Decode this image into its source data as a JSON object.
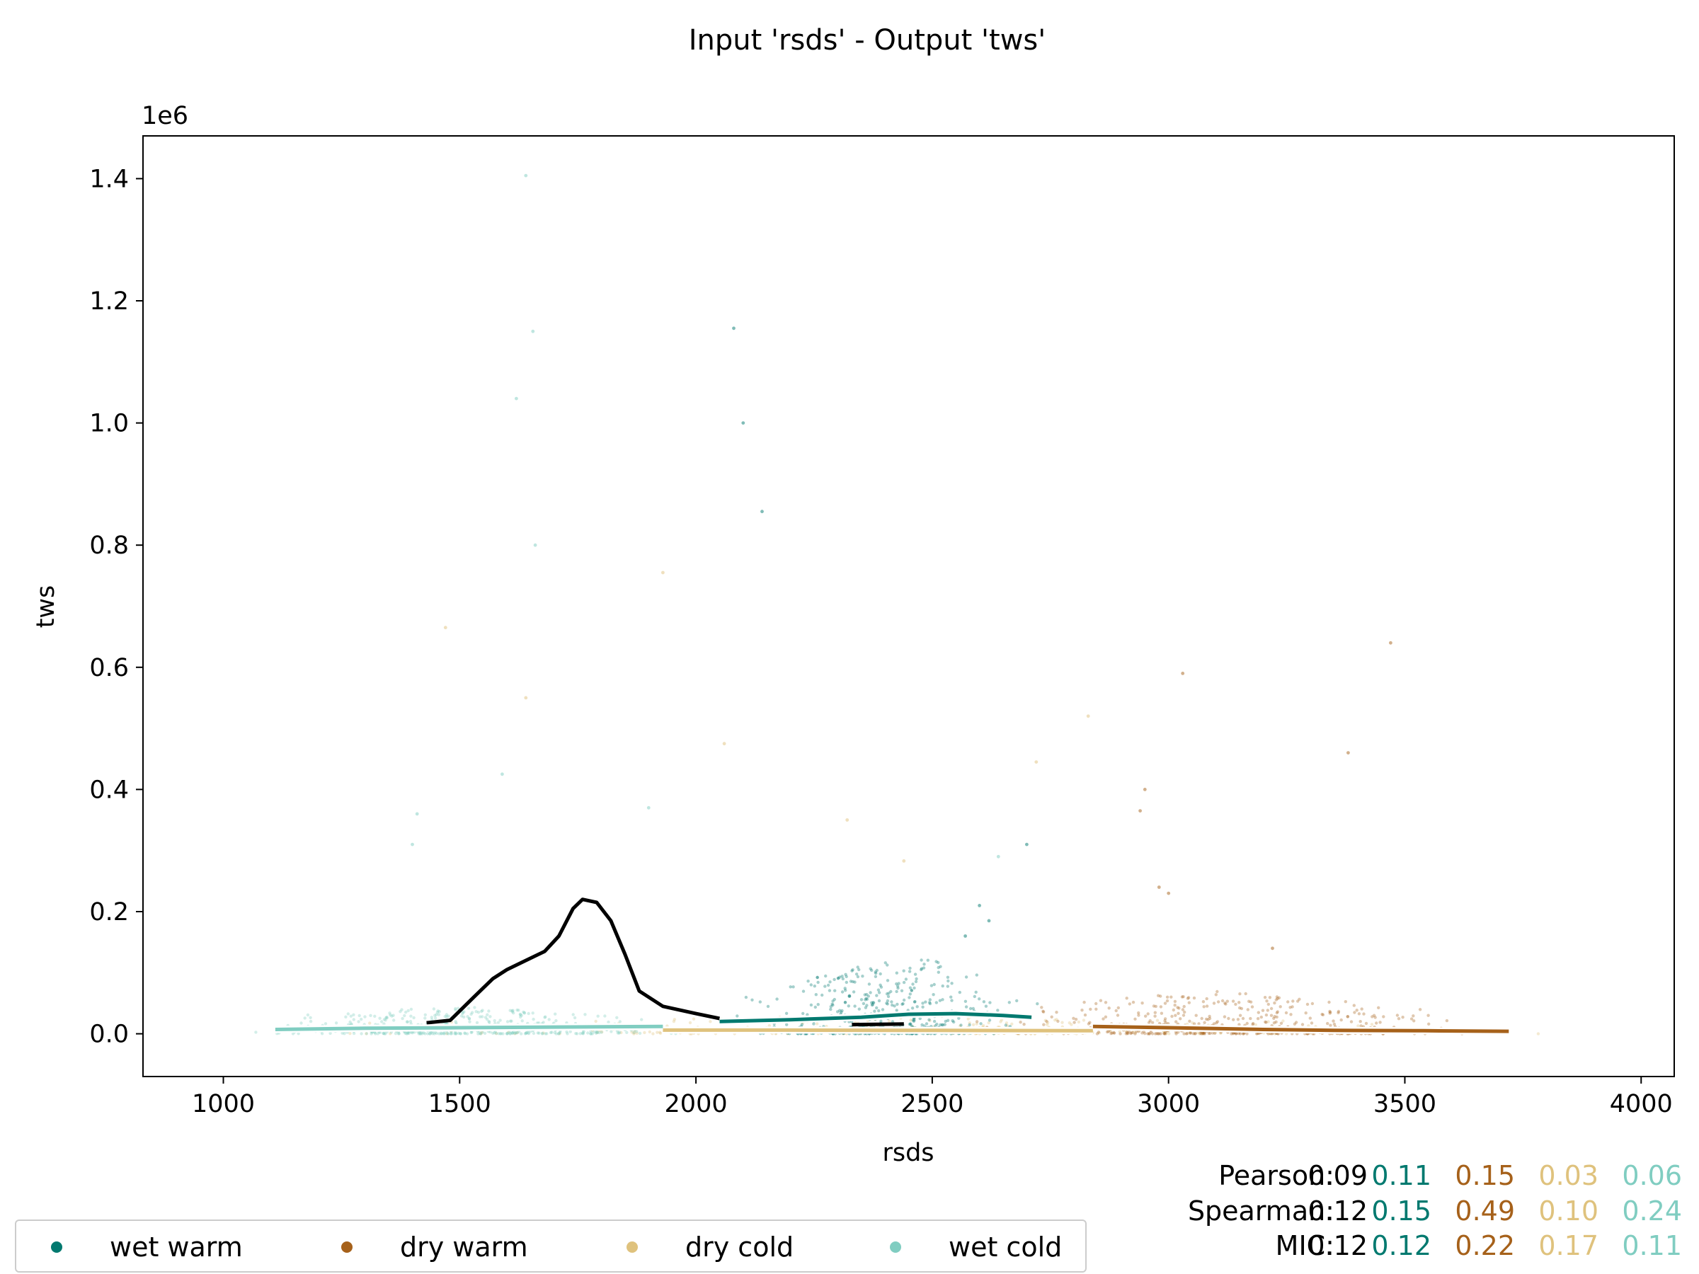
{
  "chart_data": {
    "type": "scatter",
    "title": "Input 'rsds' - Output 'tws'",
    "xlabel": "rsds",
    "ylabel": "tws",
    "y_offset_label": "1e6",
    "xlim": [
      830,
      4070
    ],
    "ylim": [
      -70000,
      1470000
    ],
    "x_ticks": [
      1000,
      1500,
      2000,
      2500,
      3000,
      3500,
      4000
    ],
    "x_tick_labels": [
      "1000",
      "1500",
      "2000",
      "2500",
      "3000",
      "3500",
      "4000"
    ],
    "y_ticks": [
      0,
      200000,
      400000,
      600000,
      800000,
      1000000,
      1200000,
      1400000
    ],
    "y_tick_labels": [
      "0.0",
      "0.2",
      "0.4",
      "0.6",
      "0.8",
      "1.0",
      "1.2",
      "1.4"
    ],
    "grid": false,
    "legend_position": "bottom-left",
    "series": [
      {
        "name": "wet warm",
        "color": "#01796f",
        "cluster": {
          "x_range": [
            2050,
            2750
          ],
          "y_max": 130000,
          "center": 2450,
          "density": 0.55
        },
        "outliers": [
          [
            2080,
            1155000
          ],
          [
            2100,
            1000000
          ],
          [
            2140,
            855000
          ],
          [
            2620,
            185000
          ],
          [
            2570,
            160000
          ],
          [
            2600,
            210000
          ],
          [
            2700,
            310000
          ]
        ],
        "trend": [
          [
            2050,
            20000
          ],
          [
            2200,
            23000
          ],
          [
            2350,
            27000
          ],
          [
            2450,
            32000
          ],
          [
            2550,
            33000
          ],
          [
            2650,
            30000
          ],
          [
            2710,
            27000
          ]
        ]
      },
      {
        "name": "dry warm",
        "color": "#a6611a",
        "cluster": {
          "x_range": [
            2500,
            3720
          ],
          "y_max": 70000,
          "center": 3100,
          "density": 0.5
        },
        "outliers": [
          [
            3030,
            590000
          ],
          [
            3470,
            640000
          ],
          [
            3380,
            460000
          ],
          [
            2950,
            400000
          ],
          [
            2940,
            365000
          ],
          [
            2980,
            240000
          ],
          [
            3000,
            230000
          ],
          [
            3220,
            140000
          ]
        ],
        "trend": [
          [
            2840,
            12000
          ],
          [
            3000,
            10000
          ],
          [
            3200,
            7000
          ],
          [
            3350,
            5500
          ],
          [
            3520,
            5000
          ],
          [
            3540,
            5000
          ],
          [
            3720,
            4000
          ]
        ]
      },
      {
        "name": "dry cold",
        "color": "#dfc27d",
        "cluster": {
          "x_range": [
            960,
            3900
          ],
          "y_max": 30000,
          "center": 2400,
          "density": 0.3
        },
        "outliers": [
          [
            1470,
            665000
          ],
          [
            1640,
            550000
          ],
          [
            2060,
            475000
          ],
          [
            1930,
            755000
          ],
          [
            2720,
            445000
          ],
          [
            2830,
            520000
          ],
          [
            2440,
            283000
          ],
          [
            2320,
            350000
          ]
        ],
        "trend": [
          [
            1930,
            6000
          ],
          [
            2200,
            6000
          ],
          [
            2500,
            5500
          ],
          [
            2840,
            5000
          ]
        ]
      },
      {
        "name": "wet cold",
        "color": "#80cdc1",
        "cluster": {
          "x_range": [
            970,
            2050
          ],
          "y_max": 45000,
          "center": 1500,
          "density": 0.5
        },
        "outliers": [
          [
            1640,
            1405000
          ],
          [
            1655,
            1150000
          ],
          [
            1620,
            1040000
          ],
          [
            1660,
            800000
          ],
          [
            1590,
            425000
          ],
          [
            1900,
            370000
          ],
          [
            1410,
            360000
          ],
          [
            1400,
            310000
          ],
          [
            2640,
            290000
          ]
        ],
        "trend": [
          [
            1110,
            7000
          ],
          [
            1300,
            9000
          ],
          [
            1500,
            10000
          ],
          [
            1700,
            11000
          ],
          [
            1930,
            12000
          ]
        ]
      }
    ],
    "black_trend": [
      [
        1430,
        18000
      ],
      [
        1480,
        22000
      ],
      [
        1530,
        60000
      ],
      [
        1570,
        90000
      ],
      [
        1600,
        105000
      ],
      [
        1640,
        120000
      ],
      [
        1680,
        135000
      ],
      [
        1710,
        160000
      ],
      [
        1740,
        205000
      ],
      [
        1760,
        220000
      ],
      [
        1790,
        215000
      ],
      [
        1820,
        185000
      ],
      [
        1850,
        130000
      ],
      [
        1880,
        70000
      ],
      [
        1930,
        45000
      ],
      [
        2000,
        33000
      ],
      [
        2050,
        25000
      ]
    ],
    "black_tail": [
      [
        2330,
        15000
      ],
      [
        2440,
        16000
      ]
    ],
    "stats": {
      "rows": [
        {
          "label": "Pearson:",
          "values": [
            "0.09",
            "0.11",
            "0.15",
            "0.03",
            "0.06"
          ]
        },
        {
          "label": "Spearman:",
          "values": [
            "0.12",
            "0.15",
            "0.49",
            "0.10",
            "0.24"
          ]
        },
        {
          "label": "MIC:",
          "values": [
            "0.12",
            "0.12",
            "0.22",
            "0.17",
            "0.11"
          ]
        }
      ],
      "colors": [
        "#000000",
        "#01796f",
        "#a6611a",
        "#dfc27d",
        "#80cdc1"
      ]
    }
  }
}
